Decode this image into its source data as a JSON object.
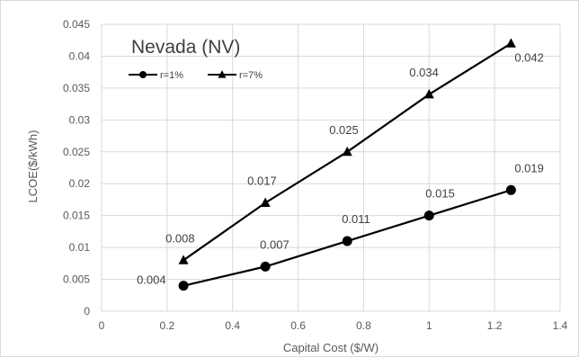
{
  "chart_data": {
    "type": "line",
    "title": "Nevada (NV)",
    "xlabel": "Capital Cost ($/W)",
    "ylabel": "LCOE($/kWh)",
    "xlim": [
      0,
      1.4
    ],
    "ylim": [
      0,
      0.045
    ],
    "x_ticks": [
      "0",
      "0.2",
      "0.4",
      "0.6",
      "0.8",
      "1",
      "1.2",
      "1.4"
    ],
    "y_ticks": [
      "0",
      "0.005",
      "0.01",
      "0.015",
      "0.02",
      "0.025",
      "0.03",
      "0.035",
      "0.04",
      "0.045"
    ],
    "grid": true,
    "legend_position": "top-left",
    "x": [
      0.25,
      0.5,
      0.75,
      1.0,
      1.25
    ],
    "series": [
      {
        "name": "r=1%",
        "marker": "circle",
        "color": "#000000",
        "values": [
          0.004,
          0.007,
          0.011,
          0.015,
          0.019
        ],
        "labels": [
          "0.004",
          "0.007",
          "0.011",
          "0.015",
          "0.019"
        ]
      },
      {
        "name": "r=7%",
        "marker": "triangle",
        "color": "#000000",
        "values": [
          0.008,
          0.017,
          0.025,
          0.034,
          0.042
        ],
        "labels": [
          "0.008",
          "0.017",
          "0.025",
          "0.034",
          "0.042"
        ]
      }
    ]
  }
}
